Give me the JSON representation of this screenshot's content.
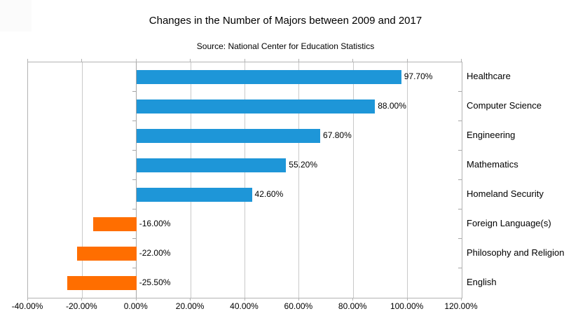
{
  "chart_data": {
    "type": "bar",
    "orientation": "horizontal",
    "title": "Changes in the Number of Majors between 2009 and 2017",
    "subtitle": "Source: National Center for Education Statistics",
    "categories": [
      "Healthcare",
      "Computer Science",
      "Engineering",
      "Mathematics",
      "Homeland Security",
      "Foreign Language(s)",
      "Philosophy and Religion",
      "English"
    ],
    "values": [
      97.7,
      88.0,
      67.8,
      55.2,
      42.6,
      -16.0,
      -22.0,
      -25.5
    ],
    "value_labels": [
      "97.70%",
      "88.00%",
      "67.80%",
      "55.20%",
      "42.60%",
      "-16.00%",
      "-22.00%",
      "-25.50%"
    ],
    "x_ticks": [
      -40,
      -20,
      0,
      20,
      40,
      60,
      80,
      100,
      120
    ],
    "x_tick_labels": [
      "-40.00%",
      "-20.00%",
      "0.00%",
      "20.00%",
      "40.00%",
      "60.00%",
      "80.00%",
      "100.00%",
      "120.00%"
    ],
    "xlim": [
      -40,
      120
    ],
    "grid": "vertical",
    "legend": "none",
    "colors": {
      "positive": "#1e96d8",
      "negative": "#ff6e00",
      "gridline": "#c9c9c9",
      "axis_border": "#b3b3b3",
      "text": "#000000",
      "background": "#ffffff"
    }
  }
}
